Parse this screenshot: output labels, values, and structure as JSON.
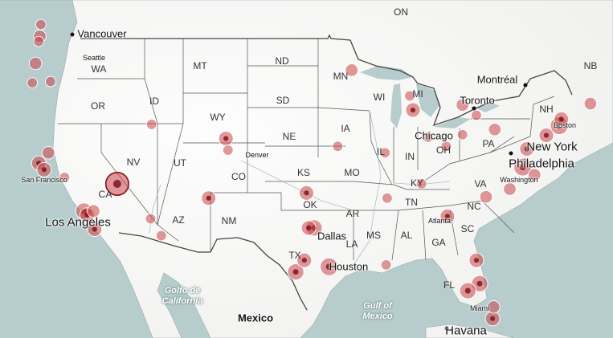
{
  "states": [
    "ON",
    "MT",
    "ND",
    "MN",
    "WA",
    "OR",
    "ID",
    "WY",
    "SD",
    "WI",
    "MI",
    "NB",
    "NH",
    "IA",
    "NE",
    "NV",
    "UT",
    "CO",
    "KS",
    "IL",
    "IN",
    "OH",
    "PA",
    "CA",
    "MO",
    "KY",
    "VA",
    "OK",
    "AR",
    "TN",
    "NC",
    "AZ",
    "NM",
    "MS",
    "AL",
    "GA",
    "SC",
    "LA",
    "TX",
    "FL"
  ],
  "cities": [
    "Vancouver",
    "Seattle",
    "Montréal",
    "Toronto",
    "Boston",
    "New York",
    "Denver",
    "Chicago",
    "Philadelphia",
    "Washington",
    "San Francisco",
    "Los Angeles",
    "Atlanta",
    "Dallas",
    "Houston",
    "Miami",
    "Mexico",
    "Havana"
  ],
  "water": {
    "gulf_california": [
      "Golfo de",
      "California"
    ],
    "gulf_mexico": [
      "Gulf of",
      "Mexico"
    ]
  },
  "colors": {
    "bubble_fill": "#c9454b",
    "bubble_dark": "#7a0d12",
    "outline": "#8a0e14"
  },
  "sites": [
    {
      "lon": -122.3,
      "lat": 47.6,
      "value": 3
    },
    {
      "lon": -122.4,
      "lat": 47.2,
      "value": 2
    },
    {
      "lon": -122.2,
      "lat": 48.5,
      "value": 2
    },
    {
      "lon": -122.7,
      "lat": 45.5,
      "value": 3
    },
    {
      "lon": -123.0,
      "lat": 44.0,
      "value": 2
    },
    {
      "lon": -121.3,
      "lat": 44.1,
      "value": 2
    },
    {
      "lon": -122.4,
      "lat": 37.8,
      "value": 4
    },
    {
      "lon": -121.9,
      "lat": 37.3,
      "value": 4
    },
    {
      "lon": -121.5,
      "lat": 38.6,
      "value": 3
    },
    {
      "lon": -120.0,
      "lat": 36.7,
      "value": 2
    },
    {
      "lon": -118.2,
      "lat": 34.1,
      "value": 5
    },
    {
      "lon": -117.9,
      "lat": 33.8,
      "value": 4
    },
    {
      "lon": -117.2,
      "lat": 32.7,
      "value": 4
    },
    {
      "lon": -117.3,
      "lat": 34.1,
      "value": 3
    },
    {
      "lon": -115.1,
      "lat": 36.2,
      "value": 10
    },
    {
      "lon": -112.0,
      "lat": 33.5,
      "value": 2
    },
    {
      "lon": -111.0,
      "lat": 32.2,
      "value": 2
    },
    {
      "lon": -111.9,
      "lat": 40.8,
      "value": 2
    },
    {
      "lon": -104.99,
      "lat": 39.7,
      "value": 4
    },
    {
      "lon": -104.8,
      "lat": 38.8,
      "value": 2
    },
    {
      "lon": -106.6,
      "lat": 35.1,
      "value": 4
    },
    {
      "lon": -97.5,
      "lat": 35.5,
      "value": 4
    },
    {
      "lon": -96.8,
      "lat": 32.8,
      "value": 5
    },
    {
      "lon": -97.3,
      "lat": 32.8,
      "value": 4
    },
    {
      "lon": -95.4,
      "lat": 29.8,
      "value": 6
    },
    {
      "lon": -98.5,
      "lat": 29.4,
      "value": 5
    },
    {
      "lon": -97.7,
      "lat": 30.3,
      "value": 4
    },
    {
      "lon": -94.6,
      "lat": 39.1,
      "value": 2
    },
    {
      "lon": -90.2,
      "lat": 38.6,
      "value": 2
    },
    {
      "lon": -93.3,
      "lat": 44.98,
      "value": 3
    },
    {
      "lon": -87.6,
      "lat": 41.9,
      "value": 4
    },
    {
      "lon": -87.9,
      "lat": 43.0,
      "value": 2
    },
    {
      "lon": -83.0,
      "lat": 42.3,
      "value": 3
    },
    {
      "lon": -86.2,
      "lat": 39.8,
      "value": 2
    },
    {
      "lon": -84.5,
      "lat": 39.1,
      "value": 2
    },
    {
      "lon": -82.99,
      "lat": 40.0,
      "value": 2
    },
    {
      "lon": -81.7,
      "lat": 41.5,
      "value": 2
    },
    {
      "lon": -80.0,
      "lat": 40.4,
      "value": 3
    },
    {
      "lon": -75.2,
      "lat": 39.95,
      "value": 4
    },
    {
      "lon": -74.0,
      "lat": 40.7,
      "value": 6
    },
    {
      "lon": -73.8,
      "lat": 41.2,
      "value": 4
    },
    {
      "lon": -71.1,
      "lat": 42.4,
      "value": 3
    },
    {
      "lon": -77.0,
      "lat": 38.9,
      "value": 4
    },
    {
      "lon": -77.4,
      "lat": 37.5,
      "value": 6
    },
    {
      "lon": -76.3,
      "lat": 36.9,
      "value": 3
    },
    {
      "lon": -80.8,
      "lat": 35.2,
      "value": 3
    },
    {
      "lon": -78.6,
      "lat": 35.8,
      "value": 3
    },
    {
      "lon": -84.4,
      "lat": 33.7,
      "value": 4
    },
    {
      "lon": -86.8,
      "lat": 36.2,
      "value": 2
    },
    {
      "lon": -90.0,
      "lat": 35.1,
      "value": 2
    },
    {
      "lon": -90.1,
      "lat": 29.95,
      "value": 2
    },
    {
      "lon": -81.4,
      "lat": 28.5,
      "value": 5
    },
    {
      "lon": -82.5,
      "lat": 27.95,
      "value": 5
    },
    {
      "lon": -80.2,
      "lat": 25.8,
      "value": 4
    },
    {
      "lon": -81.7,
      "lat": 30.3,
      "value": 4
    },
    {
      "lon": -80.1,
      "lat": 26.7,
      "value": 3
    }
  ]
}
